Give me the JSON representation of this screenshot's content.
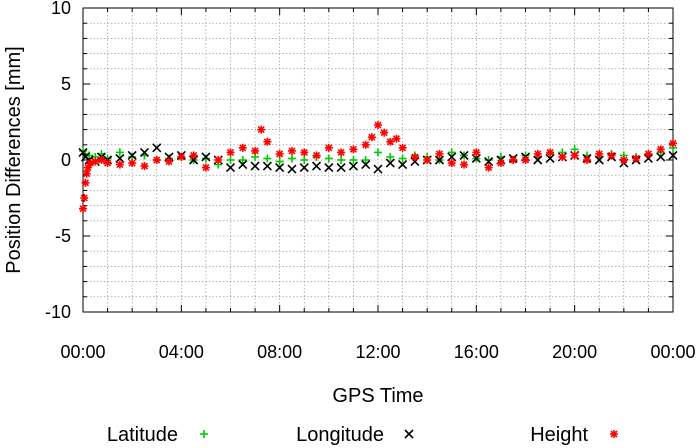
{
  "chart_data": {
    "type": "scatter",
    "title": "",
    "xlabel": "GPS Time",
    "ylabel": "Position Differences [mm]",
    "ylim": [
      -10,
      10
    ],
    "xlim_hours": [
      0,
      24
    ],
    "grid": true,
    "legend_placement": "bottom",
    "y_ticks": [
      {
        "value": 10,
        "label": "10"
      },
      {
        "value": 5,
        "label": "5"
      },
      {
        "value": 0,
        "label": "0"
      },
      {
        "value": -5,
        "label": "-5"
      },
      {
        "value": -10,
        "label": "-10"
      }
    ],
    "x_ticks": [
      {
        "value": 0,
        "label": "00:00"
      },
      {
        "value": 4,
        "label": "04:00"
      },
      {
        "value": 8,
        "label": "08:00"
      },
      {
        "value": 12,
        "label": "12:00"
      },
      {
        "value": 16,
        "label": "16:00"
      },
      {
        "value": 20,
        "label": "20:00"
      },
      {
        "value": 24,
        "label": "00:00"
      }
    ],
    "series": [
      {
        "name": "Latitude",
        "marker": "plus",
        "color": "#00cc00",
        "x": [
          0.0,
          0.1,
          0.25,
          0.5,
          0.75,
          1.0,
          1.5,
          2.0,
          2.5,
          3.0,
          3.5,
          4.0,
          4.5,
          5.0,
          5.5,
          6.0,
          6.5,
          7.0,
          7.5,
          8.0,
          8.5,
          9.0,
          9.5,
          10.0,
          10.5,
          11.0,
          11.5,
          12.0,
          12.5,
          13.0,
          13.5,
          14.0,
          14.5,
          15.0,
          15.5,
          16.0,
          16.5,
          17.0,
          17.5,
          18.0,
          18.5,
          19.0,
          19.5,
          20.0,
          20.5,
          21.0,
          21.5,
          22.0,
          22.5,
          23.0,
          23.5,
          24.0
        ],
        "y": [
          0.6,
          0.4,
          0.3,
          0.2,
          0.4,
          0.1,
          0.5,
          0.2,
          0.3,
          0.0,
          0.1,
          0.2,
          0.0,
          0.1,
          -0.3,
          0.0,
          0.0,
          0.2,
          0.1,
          -0.1,
          0.1,
          0.0,
          0.2,
          0.1,
          0.0,
          0.0,
          0.0,
          0.5,
          0.2,
          0.1,
          0.3,
          0.2,
          0.0,
          0.5,
          0.3,
          0.1,
          0.0,
          0.2,
          0.0,
          0.3,
          0.2,
          0.4,
          0.5,
          0.7,
          0.3,
          0.2,
          0.4,
          0.3,
          0.2,
          0.3,
          0.5,
          0.8
        ]
      },
      {
        "name": "Longitude",
        "marker": "cross",
        "color": "#000000",
        "x": [
          0.0,
          0.1,
          0.25,
          0.5,
          0.75,
          1.0,
          1.5,
          2.0,
          2.5,
          3.0,
          3.5,
          4.0,
          4.5,
          5.0,
          5.5,
          6.0,
          6.5,
          7.0,
          7.5,
          8.0,
          8.5,
          9.0,
          9.5,
          10.0,
          10.5,
          11.0,
          11.5,
          12.0,
          12.5,
          13.0,
          13.5,
          14.0,
          14.5,
          15.0,
          15.5,
          16.0,
          16.5,
          17.0,
          17.5,
          18.0,
          18.5,
          19.0,
          19.5,
          20.0,
          20.5,
          21.0,
          21.5,
          22.0,
          22.5,
          23.0,
          23.5,
          24.0
        ],
        "y": [
          0.5,
          0.2,
          0.0,
          -0.1,
          0.2,
          0.0,
          0.1,
          0.3,
          0.5,
          0.8,
          0.2,
          0.3,
          0.0,
          0.2,
          0.0,
          -0.5,
          -0.3,
          -0.4,
          -0.4,
          -0.5,
          -0.6,
          -0.5,
          -0.4,
          -0.5,
          -0.5,
          -0.4,
          -0.3,
          -0.6,
          -0.2,
          -0.3,
          -0.1,
          0.0,
          0.0,
          0.2,
          0.3,
          0.1,
          -0.1,
          0.0,
          0.1,
          0.2,
          0.0,
          0.1,
          0.2,
          0.3,
          0.1,
          0.0,
          0.2,
          -0.2,
          0.0,
          0.1,
          0.2,
          0.3
        ]
      },
      {
        "name": "Height",
        "marker": "star",
        "color": "#ff0000",
        "x": [
          0.0,
          0.05,
          0.1,
          0.15,
          0.2,
          0.3,
          0.5,
          0.75,
          1.0,
          1.5,
          2.0,
          2.5,
          3.0,
          3.5,
          4.0,
          4.5,
          5.0,
          5.5,
          6.0,
          6.5,
          7.0,
          7.25,
          7.5,
          8.0,
          8.5,
          9.0,
          9.5,
          10.0,
          10.5,
          11.0,
          11.5,
          11.75,
          12.0,
          12.25,
          12.5,
          12.75,
          13.0,
          13.5,
          14.0,
          14.5,
          15.0,
          15.5,
          16.0,
          16.5,
          17.0,
          17.5,
          18.0,
          18.5,
          19.0,
          19.5,
          20.0,
          20.5,
          21.0,
          21.5,
          22.0,
          22.5,
          23.0,
          23.5,
          24.0
        ],
        "y": [
          -3.2,
          -2.5,
          -1.5,
          -0.9,
          -0.5,
          -0.2,
          -0.1,
          0.0,
          -0.2,
          -0.3,
          -0.2,
          -0.4,
          0.0,
          -0.1,
          0.2,
          0.3,
          -0.5,
          0.0,
          0.5,
          0.8,
          0.6,
          2.0,
          1.2,
          0.4,
          0.6,
          0.5,
          0.3,
          0.8,
          0.5,
          0.7,
          1.0,
          1.5,
          2.3,
          1.8,
          1.2,
          1.4,
          0.8,
          0.2,
          0.0,
          0.4,
          -0.2,
          -0.3,
          0.5,
          -0.5,
          -0.2,
          0.0,
          0.0,
          0.4,
          0.5,
          0.2,
          0.3,
          0.0,
          0.4,
          0.3,
          0.0,
          0.1,
          0.4,
          0.7,
          1.1
        ]
      }
    ]
  }
}
